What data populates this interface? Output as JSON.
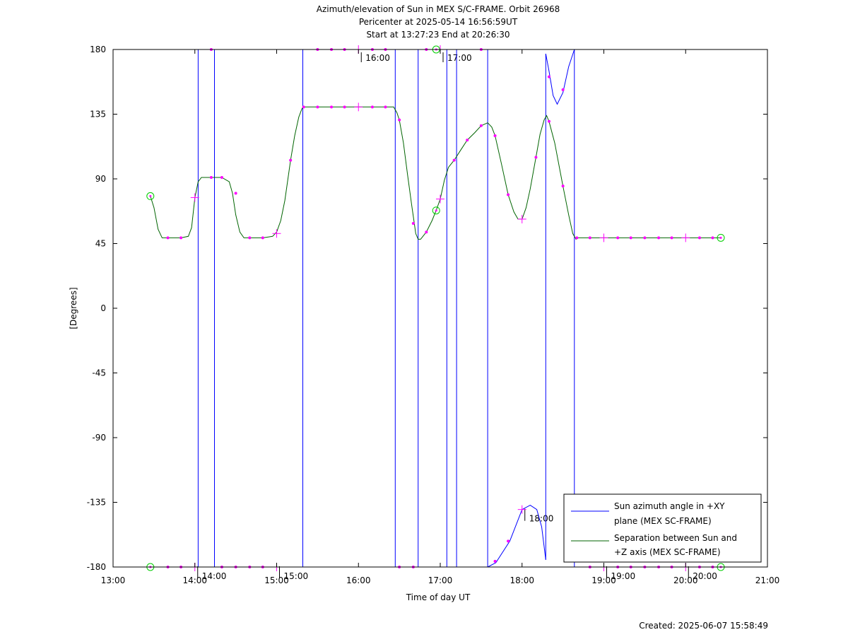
{
  "chart_data": {
    "type": "line",
    "title_lines": [
      "Azimuth/elevation of Sun in MEX S/C-FRAME.  Orbit 26968",
      "Pericenter at 2025-05-14 16:56:59UT",
      "Start at 13:27:23 End at 20:26:30"
    ],
    "xlabel": "Time of day UT",
    "ylabel": "[Degrees]",
    "footer": "Created: 2025-06-07 15:58:49",
    "xlim": [
      13.0,
      21.0
    ],
    "ylim": [
      -180,
      180
    ],
    "x_ticks": [
      13,
      14,
      15,
      16,
      17,
      18,
      19,
      20,
      21
    ],
    "x_tick_labels": [
      "13:00",
      "14:00",
      "15:00",
      "16:00",
      "17:00",
      "18:00",
      "19:00",
      "20:00",
      "21:00"
    ],
    "y_ticks": [
      180,
      135,
      90,
      45,
      0,
      -45,
      -90,
      -135,
      -180
    ],
    "y_tick_labels": [
      "180",
      "135",
      "90",
      "45",
      "0",
      "-45",
      "-90",
      "-135",
      "-180"
    ],
    "hour_markers": [
      {
        "label": "14:00",
        "x": 14.0,
        "y": -180
      },
      {
        "label": "15:00",
        "x": 15.0,
        "y": -180
      },
      {
        "label": "16:00",
        "x": 16.0,
        "y": 180
      },
      {
        "label": "17:00",
        "x": 17.0,
        "y": 180
      },
      {
        "label": "18:00",
        "x": 18.0,
        "y": -140
      },
      {
        "label": "19:00",
        "x": 19.0,
        "y": -180
      },
      {
        "label": "20:00",
        "x": 20.0,
        "y": -180
      }
    ],
    "series": [
      {
        "name": "Sun azimuth angle in +XY plane (MEX SC-FRAME)",
        "legend_lines": [
          "Sun azimuth angle in +XY",
          "plane (MEX SC-FRAME)"
        ],
        "color": "#0000ff",
        "segments": [
          [
            [
              13.456,
              -180
            ],
            [
              14.04,
              -180
            ]
          ],
          [
            [
              14.04,
              -180
            ],
            [
              14.04,
              180
            ]
          ],
          [
            [
              14.04,
              180
            ],
            [
              14.24,
              180
            ]
          ],
          [
            [
              14.24,
              180
            ],
            [
              14.24,
              -180
            ]
          ],
          [
            [
              14.24,
              -180
            ],
            [
              15.32,
              -180
            ]
          ],
          [
            [
              15.32,
              -180
            ],
            [
              15.32,
              180
            ]
          ],
          [
            [
              15.32,
              180
            ],
            [
              16.45,
              180
            ]
          ],
          [
            [
              16.45,
              180
            ],
            [
              16.45,
              -180
            ]
          ],
          [
            [
              16.45,
              -180
            ],
            [
              16.73,
              -180
            ]
          ],
          [
            [
              16.73,
              -180
            ],
            [
              16.73,
              180
            ]
          ],
          [
            [
              16.73,
              180
            ],
            [
              17.08,
              180
            ]
          ],
          [
            [
              17.08,
              180
            ],
            [
              17.08,
              -180
            ]
          ],
          [
            [
              17.08,
              -180
            ],
            [
              17.2,
              -180
            ]
          ],
          [
            [
              17.2,
              -180
            ],
            [
              17.2,
              180
            ]
          ],
          [
            [
              17.2,
              180
            ],
            [
              17.58,
              180
            ]
          ],
          [
            [
              17.58,
              180
            ],
            [
              17.58,
              -180
            ]
          ],
          [
            [
              17.58,
              -180
            ],
            [
              17.68,
              -177
            ],
            [
              17.85,
              -162
            ],
            [
              18.0,
              -140
            ],
            [
              18.1,
              -137
            ],
            [
              18.18,
              -140
            ],
            [
              18.24,
              -152
            ],
            [
              18.29,
              -175
            ]
          ],
          [
            [
              18.29,
              -175
            ],
            [
              18.29,
              177
            ]
          ],
          [
            [
              18.29,
              177
            ],
            [
              18.33,
              165
            ],
            [
              18.38,
              148
            ],
            [
              18.43,
              142
            ],
            [
              18.5,
              150
            ],
            [
              18.57,
              168
            ],
            [
              18.64,
              180
            ]
          ],
          [
            [
              18.64,
              180
            ],
            [
              18.64,
              -180
            ]
          ],
          [
            [
              18.64,
              -180
            ],
            [
              20.43,
              -180
            ]
          ]
        ],
        "markers": [
          [
            14.2,
            180
          ],
          [
            15.5,
            180
          ],
          [
            15.67,
            180
          ],
          [
            15.83,
            180
          ],
          [
            16.17,
            180
          ],
          [
            16.33,
            180
          ],
          [
            16.83,
            180
          ],
          [
            17.5,
            180
          ],
          [
            13.67,
            -180
          ],
          [
            13.83,
            -180
          ],
          [
            14.33,
            -180
          ],
          [
            14.5,
            -180
          ],
          [
            14.67,
            -180
          ],
          [
            14.83,
            -180
          ],
          [
            16.5,
            -180
          ],
          [
            16.67,
            -180
          ],
          [
            17.67,
            -176
          ],
          [
            17.83,
            -162
          ],
          [
            18.33,
            161
          ],
          [
            18.5,
            152
          ],
          [
            18.83,
            -180
          ],
          [
            19.17,
            -180
          ],
          [
            19.33,
            -180
          ],
          [
            19.5,
            -180
          ],
          [
            19.67,
            -180
          ],
          [
            19.83,
            -180
          ],
          [
            20.17,
            -180
          ],
          [
            20.33,
            -180
          ]
        ],
        "plus_markers": [
          [
            14.0,
            -180
          ],
          [
            15.0,
            -180
          ],
          [
            16.0,
            180
          ],
          [
            17.0,
            180
          ],
          [
            18.0,
            -140
          ],
          [
            19.0,
            -180
          ],
          [
            20.0,
            -180
          ]
        ],
        "circle_markers": [
          [
            13.456,
            -180
          ],
          [
            16.95,
            180
          ],
          [
            20.43,
            -180
          ]
        ]
      },
      {
        "name": "Separation between Sun and +Z axis (MEX SC-FRAME)",
        "legend_lines": [
          "Separation between Sun and",
          "+Z axis (MEX SC-FRAME)"
        ],
        "color": "#006400",
        "points": [
          [
            13.456,
            78
          ],
          [
            13.5,
            70
          ],
          [
            13.55,
            55
          ],
          [
            13.6,
            49
          ],
          [
            13.67,
            49
          ],
          [
            13.83,
            49
          ],
          [
            13.92,
            50
          ],
          [
            13.96,
            56
          ],
          [
            14.0,
            77
          ],
          [
            14.04,
            88
          ],
          [
            14.08,
            91
          ],
          [
            14.2,
            91
          ],
          [
            14.33,
            91
          ],
          [
            14.42,
            88
          ],
          [
            14.46,
            80
          ],
          [
            14.5,
            65
          ],
          [
            14.55,
            53
          ],
          [
            14.6,
            49
          ],
          [
            14.67,
            49
          ],
          [
            14.83,
            49
          ],
          [
            14.95,
            50
          ],
          [
            15.0,
            53
          ],
          [
            15.05,
            61
          ],
          [
            15.1,
            75
          ],
          [
            15.17,
            103
          ],
          [
            15.22,
            120
          ],
          [
            15.27,
            133
          ],
          [
            15.31,
            139
          ],
          [
            15.33,
            140
          ],
          [
            15.5,
            140
          ],
          [
            15.67,
            140
          ],
          [
            15.83,
            140
          ],
          [
            16.0,
            140
          ],
          [
            16.17,
            140
          ],
          [
            16.33,
            140
          ],
          [
            16.43,
            140
          ],
          [
            16.47,
            136
          ],
          [
            16.5,
            131
          ],
          [
            16.55,
            115
          ],
          [
            16.6,
            93
          ],
          [
            16.65,
            72
          ],
          [
            16.68,
            60
          ],
          [
            16.7,
            52
          ],
          [
            16.73,
            48
          ],
          [
            16.76,
            48
          ],
          [
            16.83,
            53
          ],
          [
            16.9,
            61
          ],
          [
            16.95,
            68
          ],
          [
            17.0,
            76
          ],
          [
            17.05,
            89
          ],
          [
            17.1,
            98
          ],
          [
            17.17,
            103
          ],
          [
            17.25,
            110
          ],
          [
            17.33,
            117
          ],
          [
            17.42,
            122
          ],
          [
            17.5,
            127
          ],
          [
            17.58,
            129
          ],
          [
            17.63,
            126
          ],
          [
            17.67,
            120
          ],
          [
            17.75,
            100
          ],
          [
            17.83,
            79
          ],
          [
            17.9,
            67
          ],
          [
            17.95,
            62
          ],
          [
            18.0,
            62
          ],
          [
            18.05,
            70
          ],
          [
            18.1,
            83
          ],
          [
            18.17,
            105
          ],
          [
            18.22,
            121
          ],
          [
            18.27,
            131
          ],
          [
            18.3,
            134
          ],
          [
            18.33,
            130
          ],
          [
            18.4,
            115
          ],
          [
            18.5,
            85
          ],
          [
            18.57,
            65
          ],
          [
            18.62,
            52
          ],
          [
            18.66,
            48
          ],
          [
            18.67,
            49
          ],
          [
            18.83,
            49
          ],
          [
            19.0,
            49
          ],
          [
            19.17,
            49
          ],
          [
            19.33,
            49
          ],
          [
            19.5,
            49
          ],
          [
            19.67,
            49
          ],
          [
            19.83,
            49
          ],
          [
            20.0,
            49
          ],
          [
            20.17,
            49
          ],
          [
            20.33,
            49
          ],
          [
            20.43,
            49
          ]
        ],
        "markers": [
          [
            13.67,
            49
          ],
          [
            13.83,
            49
          ],
          [
            14.2,
            91
          ],
          [
            14.33,
            91
          ],
          [
            14.5,
            80
          ],
          [
            14.67,
            49
          ],
          [
            14.83,
            49
          ],
          [
            15.17,
            103
          ],
          [
            15.33,
            140
          ],
          [
            15.5,
            140
          ],
          [
            15.67,
            140
          ],
          [
            15.83,
            140
          ],
          [
            16.17,
            140
          ],
          [
            16.33,
            140
          ],
          [
            16.5,
            131
          ],
          [
            16.67,
            59
          ],
          [
            16.83,
            53
          ],
          [
            17.17,
            103
          ],
          [
            17.33,
            117
          ],
          [
            17.5,
            127
          ],
          [
            17.67,
            120
          ],
          [
            17.83,
            79
          ],
          [
            18.17,
            105
          ],
          [
            18.33,
            130
          ],
          [
            18.5,
            85
          ],
          [
            18.67,
            49
          ],
          [
            18.83,
            49
          ],
          [
            19.17,
            49
          ],
          [
            19.33,
            49
          ],
          [
            19.5,
            49
          ],
          [
            19.67,
            49
          ],
          [
            19.83,
            49
          ],
          [
            20.17,
            49
          ],
          [
            20.33,
            49
          ]
        ],
        "plus_markers": [
          [
            14.0,
            77
          ],
          [
            15.0,
            52
          ],
          [
            16.0,
            140
          ],
          [
            17.0,
            76
          ],
          [
            18.0,
            62
          ],
          [
            19.0,
            49
          ],
          [
            20.0,
            49
          ]
        ],
        "circle_markers": [
          [
            13.456,
            78
          ],
          [
            16.95,
            68
          ],
          [
            20.43,
            49
          ]
        ]
      }
    ],
    "marker_color": "#ff00ff",
    "circle_color": "#00cc00",
    "legend_position": "bottom-right",
    "grid": false
  }
}
